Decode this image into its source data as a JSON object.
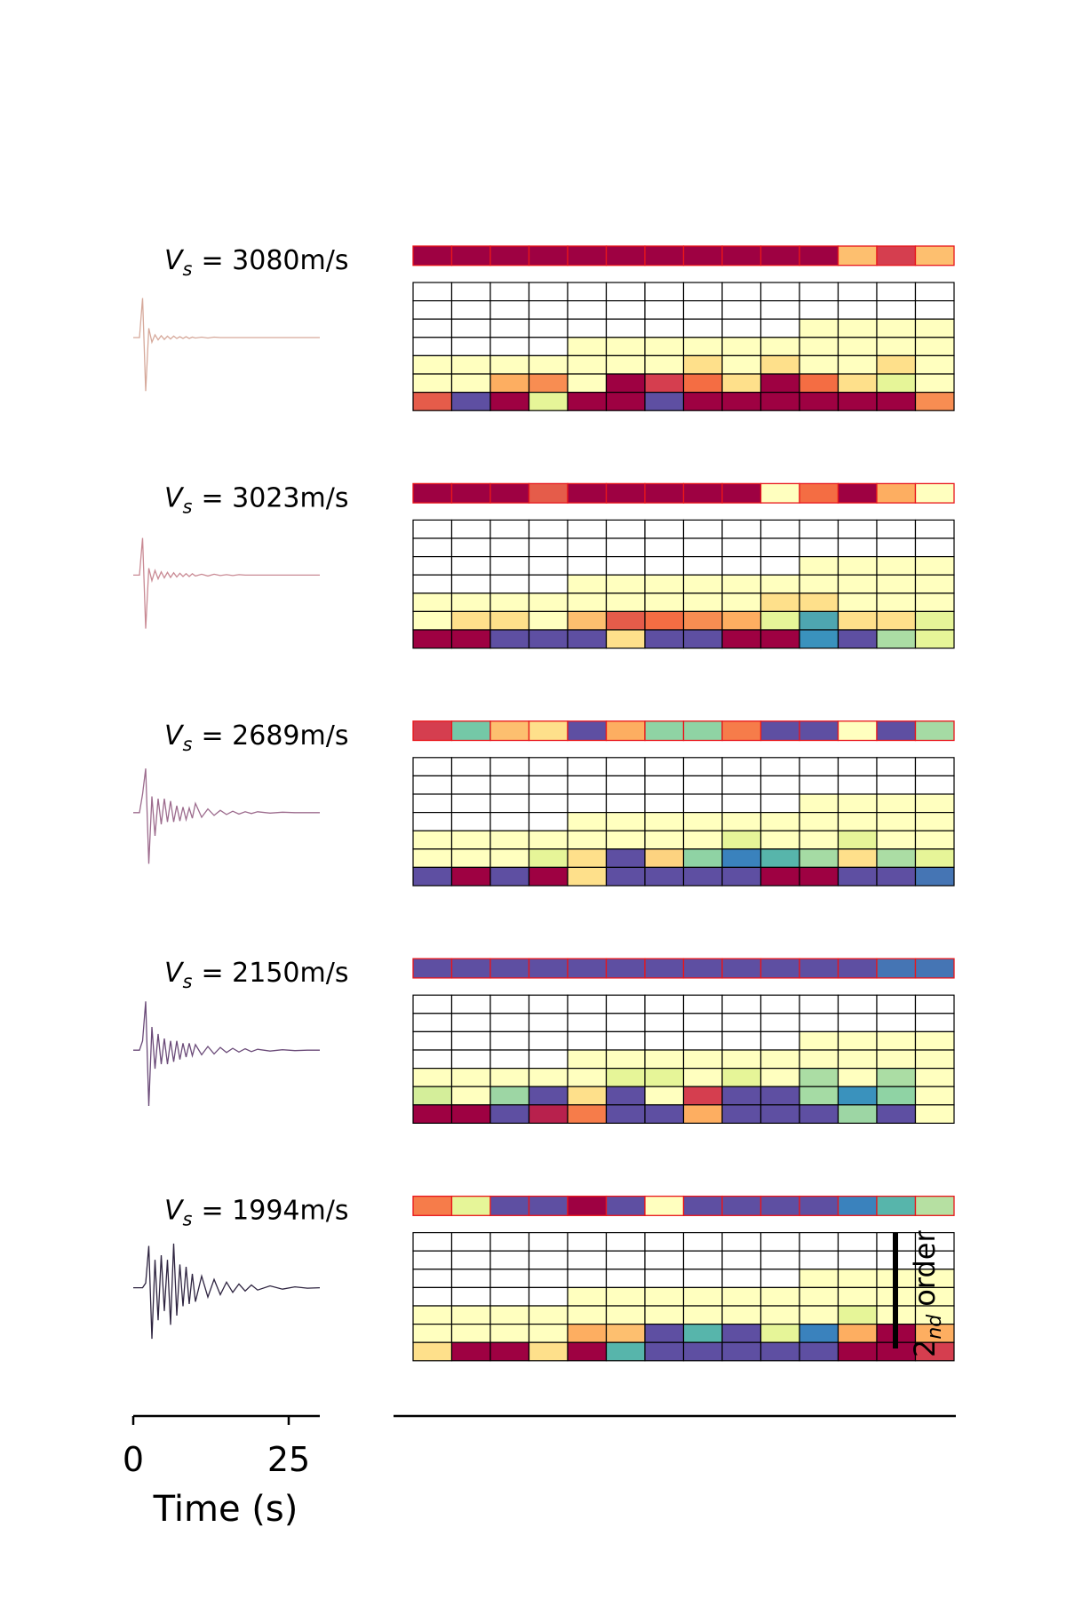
{
  "chart_data": {
    "type": "waveform-heatmap",
    "xlabel": "Time (s)",
    "xlim": [
      0,
      30
    ],
    "xticks": [
      0,
      25
    ],
    "time": [
      0,
      1,
      1.5,
      2,
      2.5,
      3,
      3.5,
      4,
      4.5,
      5,
      5.5,
      6,
      6.5,
      7,
      7.5,
      8,
      8.5,
      9,
      9.5,
      10,
      11,
      12,
      13,
      14,
      15,
      16,
      17,
      18,
      19,
      20,
      22,
      24,
      26,
      28,
      30
    ],
    "panels": [
      {
        "label": "V",
        "label_sub": "s",
        "label_text": "= 3080m/s",
        "trace_color": "#d6a99b",
        "ylim": [
          -1.3,
          1.3
        ],
        "values": [
          0,
          0,
          0.85,
          -1.15,
          0.2,
          -0.1,
          0.06,
          -0.05,
          0.04,
          -0.04,
          0.03,
          -0.03,
          0.03,
          -0.02,
          0.02,
          -0.02,
          0.02,
          -0.02,
          0.01,
          -0.01,
          0.01,
          -0.01,
          0.01,
          0,
          0,
          0,
          0,
          0,
          0,
          0,
          0,
          0,
          0,
          0,
          0
        ],
        "top_row": [
          "#9e0142",
          "#9e0142",
          "#9e0142",
          "#9e0142",
          "#9e0142",
          "#9e0142",
          "#9e0142",
          "#9e0142",
          "#9e0142",
          "#9e0142",
          "#9e0142",
          "#fdbf6f",
          "#d53e4f",
          "#fdbf6f"
        ],
        "grid": [
          [
            "#ffffff",
            "#ffffff",
            "#ffffff",
            "#ffffff",
            "#ffffff",
            "#ffffff",
            "#ffffff",
            "#ffffff",
            "#ffffff",
            "#ffffff",
            "#ffffff",
            "#ffffff",
            "#ffffff",
            "#ffffff"
          ],
          [
            "#ffffff",
            "#ffffff",
            "#ffffff",
            "#ffffff",
            "#ffffff",
            "#ffffff",
            "#ffffff",
            "#ffffff",
            "#ffffff",
            "#ffffff",
            "#ffffff",
            "#ffffff",
            "#ffffff",
            "#ffffff"
          ],
          [
            "#ffffff",
            "#ffffff",
            "#ffffff",
            "#ffffff",
            "#ffffff",
            "#ffffff",
            "#ffffff",
            "#ffffff",
            "#ffffff",
            "#ffffff",
            "#ffffbf",
            "#ffffbf",
            "#ffffbf",
            "#ffffbf"
          ],
          [
            "#ffffff",
            "#ffffff",
            "#ffffff",
            "#ffffff",
            "#ffffbf",
            "#ffffbf",
            "#ffffbf",
            "#ffffbf",
            "#ffffbf",
            "#ffffbf",
            "#ffffbf",
            "#ffffbf",
            "#ffffbf",
            "#ffffbf"
          ],
          [
            "#ffffbf",
            "#ffffbf",
            "#ffffbf",
            "#ffffbf",
            "#ffffbf",
            "#ffffbf",
            "#ffffbf",
            "#fee08b",
            "#ffffbf",
            "#fee08b",
            "#ffffbf",
            "#ffffbf",
            "#fee08b",
            "#ffffbf"
          ],
          [
            "#ffffbf",
            "#ffffbf",
            "#fdae61",
            "#f88d52",
            "#ffffbf",
            "#9e0142",
            "#d53e4f",
            "#f46d43",
            "#fee08b",
            "#9e0142",
            "#f46d43",
            "#fee08b",
            "#e6f598",
            "#ffffbf"
          ],
          [
            "#e55c4a",
            "#5e4fa2",
            "#9e0142",
            "#e6f598",
            "#9e0142",
            "#9e0142",
            "#5e4fa2",
            "#9e0142",
            "#9e0142",
            "#9e0142",
            "#9e0142",
            "#9e0142",
            "#9e0142",
            "#f88d52"
          ]
        ]
      },
      {
        "label": "V",
        "label_sub": "s",
        "label_text": "= 3023m/s",
        "trace_color": "#c98a94",
        "ylim": [
          -1.3,
          1.3
        ],
        "values": [
          0,
          0,
          0.8,
          -1.15,
          0.15,
          -0.12,
          0.1,
          -0.08,
          0.07,
          -0.06,
          0.06,
          -0.05,
          0.05,
          -0.04,
          0.04,
          -0.03,
          0.03,
          -0.03,
          0.03,
          -0.02,
          0.02,
          -0.02,
          0.02,
          -0.01,
          0.01,
          -0.01,
          0.01,
          0,
          0,
          0,
          0,
          0,
          0,
          0,
          0
        ],
        "top_row": [
          "#9e0142",
          "#9e0142",
          "#9e0142",
          "#e55c4a",
          "#9e0142",
          "#9e0142",
          "#9e0142",
          "#9e0142",
          "#9e0142",
          "#ffffbf",
          "#f46d43",
          "#9e0142",
          "#fdae61",
          "#ffffbf"
        ],
        "grid": [
          [
            "#ffffff",
            "#ffffff",
            "#ffffff",
            "#ffffff",
            "#ffffff",
            "#ffffff",
            "#ffffff",
            "#ffffff",
            "#ffffff",
            "#ffffff",
            "#ffffff",
            "#ffffff",
            "#ffffff",
            "#ffffff"
          ],
          [
            "#ffffff",
            "#ffffff",
            "#ffffff",
            "#ffffff",
            "#ffffff",
            "#ffffff",
            "#ffffff",
            "#ffffff",
            "#ffffff",
            "#ffffff",
            "#ffffff",
            "#ffffff",
            "#ffffff",
            "#ffffff"
          ],
          [
            "#ffffff",
            "#ffffff",
            "#ffffff",
            "#ffffff",
            "#ffffff",
            "#ffffff",
            "#ffffff",
            "#ffffff",
            "#ffffff",
            "#ffffff",
            "#ffffbf",
            "#ffffbf",
            "#ffffbf",
            "#ffffbf"
          ],
          [
            "#ffffff",
            "#ffffff",
            "#ffffff",
            "#ffffff",
            "#ffffbf",
            "#ffffbf",
            "#ffffbf",
            "#ffffbf",
            "#ffffbf",
            "#ffffbf",
            "#ffffbf",
            "#ffffbf",
            "#ffffbf",
            "#ffffbf"
          ],
          [
            "#ffffbf",
            "#ffffbf",
            "#ffffbf",
            "#ffffbf",
            "#ffffbf",
            "#ffffbf",
            "#ffffbf",
            "#ffffbf",
            "#ffffbf",
            "#fee08b",
            "#fee08b",
            "#ffffbf",
            "#ffffbf",
            "#ffffbf"
          ],
          [
            "#ffffbf",
            "#fee08b",
            "#fee08b",
            "#ffffbf",
            "#fdbf6f",
            "#e55c4a",
            "#f46d43",
            "#f88d52",
            "#fdae61",
            "#e6f598",
            "#4ea6b0",
            "#fee08b",
            "#fee08b",
            "#e6f598"
          ],
          [
            "#9e0142",
            "#9e0142",
            "#5e4fa2",
            "#5e4fa2",
            "#5e4fa2",
            "#fee08b",
            "#5e4fa2",
            "#5e4fa2",
            "#9e0142",
            "#9e0142",
            "#3a92bd",
            "#5e4fa2",
            "#abdda4",
            "#e6f598"
          ]
        ]
      },
      {
        "label": "V",
        "label_sub": "s",
        "label_text": "= 2689m/s",
        "trace_color": "#9c6b8d",
        "ylim": [
          -1.3,
          1.3
        ],
        "values": [
          0,
          0,
          0.4,
          0.95,
          -1.1,
          0.35,
          -0.5,
          0.3,
          -0.25,
          0.3,
          -0.2,
          0.25,
          -0.2,
          0.15,
          -0.18,
          0.12,
          -0.15,
          0.1,
          -0.12,
          0.2,
          -0.1,
          0.08,
          -0.06,
          0.05,
          -0.04,
          0.03,
          -0.03,
          0.02,
          -0.02,
          0.02,
          -0.01,
          0.01,
          0,
          0,
          0
        ],
        "top_row": [
          "#d53e4f",
          "#74c8a7",
          "#fdbf6f",
          "#fee08b",
          "#5e4fa2",
          "#fdae61",
          "#8fd3a4",
          "#8fd3a4",
          "#f67c4a",
          "#5e4fa2",
          "#5e4fa2",
          "#ffffbf",
          "#5e4fa2",
          "#a5dba4"
        ],
        "grid": [
          [
            "#ffffff",
            "#ffffff",
            "#ffffff",
            "#ffffff",
            "#ffffff",
            "#ffffff",
            "#ffffff",
            "#ffffff",
            "#ffffff",
            "#ffffff",
            "#ffffff",
            "#ffffff",
            "#ffffff",
            "#ffffff"
          ],
          [
            "#ffffff",
            "#ffffff",
            "#ffffff",
            "#ffffff",
            "#ffffff",
            "#ffffff",
            "#ffffff",
            "#ffffff",
            "#ffffff",
            "#ffffff",
            "#ffffff",
            "#ffffff",
            "#ffffff",
            "#ffffff"
          ],
          [
            "#ffffff",
            "#ffffff",
            "#ffffff",
            "#ffffff",
            "#ffffff",
            "#ffffff",
            "#ffffff",
            "#ffffff",
            "#ffffff",
            "#ffffff",
            "#ffffbf",
            "#ffffbf",
            "#ffffbf",
            "#ffffbf"
          ],
          [
            "#ffffff",
            "#ffffff",
            "#ffffff",
            "#ffffff",
            "#ffffbf",
            "#ffffbf",
            "#ffffbf",
            "#ffffbf",
            "#ffffbf",
            "#ffffbf",
            "#ffffbf",
            "#ffffbf",
            "#ffffbf",
            "#ffffbf"
          ],
          [
            "#ffffbf",
            "#ffffbf",
            "#ffffbf",
            "#ffffbf",
            "#ffffbf",
            "#ffffbf",
            "#ffffbf",
            "#ffffbf",
            "#e6f598",
            "#ffffbf",
            "#ffffbf",
            "#e6f598",
            "#ffffbf",
            "#ffffbf"
          ],
          [
            "#ffffbf",
            "#ffffbf",
            "#ffffbf",
            "#e6f598",
            "#fee08b",
            "#5e4fa2",
            "#fdd380",
            "#8fd3a4",
            "#3a82bd",
            "#57b5ab",
            "#a5dba4",
            "#fee08b",
            "#abdda4",
            "#e6f598"
          ],
          [
            "#5e4fa2",
            "#9e0142",
            "#5e4fa2",
            "#9e0142",
            "#fee08b",
            "#5e4fa2",
            "#5e4fa2",
            "#5e4fa2",
            "#5e4fa2",
            "#9e0142",
            "#9e0142",
            "#5e4fa2",
            "#5e4fa2",
            "#4575b4"
          ]
        ]
      },
      {
        "label": "V",
        "label_sub": "s",
        "label_text": "= 2150m/s",
        "trace_color": "#6a4a78",
        "ylim": [
          -1.3,
          1.3
        ],
        "values": [
          0,
          0,
          0.2,
          1.05,
          -1.2,
          0.5,
          -0.4,
          0.35,
          -0.3,
          0.25,
          -0.3,
          0.2,
          -0.25,
          0.2,
          -0.2,
          0.15,
          -0.15,
          0.15,
          -0.12,
          0.12,
          -0.1,
          0.08,
          -0.08,
          0.06,
          -0.05,
          0.04,
          -0.04,
          0.03,
          -0.03,
          0.02,
          -0.02,
          0.01,
          -0.01,
          0,
          0
        ],
        "top_row": [
          "#5e4fa2",
          "#5e4fa2",
          "#5e4fa2",
          "#5e4fa2",
          "#5e4fa2",
          "#5e4fa2",
          "#5e4fa2",
          "#5e4fa2",
          "#5e4fa2",
          "#5e4fa2",
          "#5e4fa2",
          "#5e4fa2",
          "#4575b4",
          "#4575b4"
        ],
        "grid": [
          [
            "#ffffff",
            "#ffffff",
            "#ffffff",
            "#ffffff",
            "#ffffff",
            "#ffffff",
            "#ffffff",
            "#ffffff",
            "#ffffff",
            "#ffffff",
            "#ffffff",
            "#ffffff",
            "#ffffff",
            "#ffffff"
          ],
          [
            "#ffffff",
            "#ffffff",
            "#ffffff",
            "#ffffff",
            "#ffffff",
            "#ffffff",
            "#ffffff",
            "#ffffff",
            "#ffffff",
            "#ffffff",
            "#ffffff",
            "#ffffff",
            "#ffffff",
            "#ffffff"
          ],
          [
            "#ffffff",
            "#ffffff",
            "#ffffff",
            "#ffffff",
            "#ffffff",
            "#ffffff",
            "#ffffff",
            "#ffffff",
            "#ffffff",
            "#ffffff",
            "#ffffbf",
            "#ffffbf",
            "#ffffbf",
            "#ffffbf"
          ],
          [
            "#ffffff",
            "#ffffff",
            "#ffffff",
            "#ffffff",
            "#ffffbf",
            "#ffffbf",
            "#ffffbf",
            "#ffffbf",
            "#ffffbf",
            "#ffffbf",
            "#ffffbf",
            "#ffffbf",
            "#ffffbf",
            "#ffffbf"
          ],
          [
            "#ffffbf",
            "#ffffbf",
            "#ffffbf",
            "#ffffbf",
            "#ffffbf",
            "#e6f598",
            "#e6f598",
            "#ffffbf",
            "#e6f598",
            "#ffffbf",
            "#abdda4",
            "#ffffbf",
            "#abdda4",
            "#ffffbf"
          ],
          [
            "#d4ee9a",
            "#ffffbf",
            "#9dd6a4",
            "#5e4fa2",
            "#fee08b",
            "#5e4fa2",
            "#ffffbf",
            "#d53e4f",
            "#5e4fa2",
            "#5e4fa2",
            "#a5dba4",
            "#3a92bd",
            "#8fd3a4",
            "#ffffbf"
          ],
          [
            "#9e0142",
            "#9e0142",
            "#5e4fa2",
            "#b8214d",
            "#f67c4a",
            "#5e4fa2",
            "#5e4fa2",
            "#fdae61",
            "#5e4fa2",
            "#5e4fa2",
            "#5e4fa2",
            "#9dd6a4",
            "#5e4fa2",
            "#ffffbf"
          ]
        ]
      },
      {
        "label": "V",
        "label_sub": "s",
        "label_text": "= 1994m/s",
        "trace_color": "#2e2440",
        "ylim": [
          -1.3,
          1.3
        ],
        "values": [
          0,
          0,
          0,
          0.1,
          0.9,
          -1.1,
          0.6,
          -0.7,
          0.7,
          -0.5,
          0.6,
          -0.8,
          0.95,
          -0.6,
          0.5,
          -0.4,
          0.45,
          -0.35,
          0.3,
          -0.3,
          0.25,
          -0.2,
          0.18,
          -0.15,
          0.12,
          -0.1,
          0.08,
          -0.07,
          0.06,
          -0.05,
          0.04,
          -0.03,
          0.02,
          -0.01,
          0
        ],
        "top_row": [
          "#f67c4a",
          "#e6f598",
          "#5e4fa2",
          "#5e4fa2",
          "#9e0142",
          "#5e4fa2",
          "#ffffbf",
          "#5e4fa2",
          "#5e4fa2",
          "#5e4fa2",
          "#5e4fa2",
          "#3a82bd",
          "#57b5ab",
          "#b6e0a2"
        ],
        "grid": [
          [
            "#ffffff",
            "#ffffff",
            "#ffffff",
            "#ffffff",
            "#ffffff",
            "#ffffff",
            "#ffffff",
            "#ffffff",
            "#ffffff",
            "#ffffff",
            "#ffffff",
            "#ffffff",
            "#ffffff",
            "#ffffff"
          ],
          [
            "#ffffff",
            "#ffffff",
            "#ffffff",
            "#ffffff",
            "#ffffff",
            "#ffffff",
            "#ffffff",
            "#ffffff",
            "#ffffff",
            "#ffffff",
            "#ffffff",
            "#ffffff",
            "#ffffff",
            "#ffffff"
          ],
          [
            "#ffffff",
            "#ffffff",
            "#ffffff",
            "#ffffff",
            "#ffffff",
            "#ffffff",
            "#ffffff",
            "#ffffff",
            "#ffffff",
            "#ffffff",
            "#ffffbf",
            "#ffffbf",
            "#ffffbf",
            "#ffffbf"
          ],
          [
            "#ffffff",
            "#ffffff",
            "#ffffff",
            "#ffffff",
            "#ffffbf",
            "#ffffbf",
            "#ffffbf",
            "#ffffbf",
            "#ffffbf",
            "#ffffbf",
            "#ffffbf",
            "#ffffbf",
            "#ffffbf",
            "#ffffbf"
          ],
          [
            "#ffffbf",
            "#ffffbf",
            "#ffffbf",
            "#ffffbf",
            "#ffffbf",
            "#ffffbf",
            "#ffffbf",
            "#ffffbf",
            "#ffffbf",
            "#ffffbf",
            "#ffffbf",
            "#e6f598",
            "#ffffbf",
            "#ffffbf"
          ],
          [
            "#ffffbf",
            "#ffffbf",
            "#ffffbf",
            "#ffffbf",
            "#fdae61",
            "#fdbf6f",
            "#5e4fa2",
            "#57b5ab",
            "#5e4fa2",
            "#e6f598",
            "#3a82bd",
            "#fdae61",
            "#9e0142",
            "#fdae61"
          ],
          [
            "#fee08b",
            "#9e0142",
            "#9e0142",
            "#fee08b",
            "#9e0142",
            "#57b5ab",
            "#5e4fa2",
            "#5e4fa2",
            "#5e4fa2",
            "#5e4fa2",
            "#5e4fa2",
            "#9e0142",
            "#9e0142",
            "#d53e4f"
          ]
        ]
      }
    ],
    "annotation": {
      "text": "2",
      "sub": "nd",
      "rest": "order"
    }
  }
}
